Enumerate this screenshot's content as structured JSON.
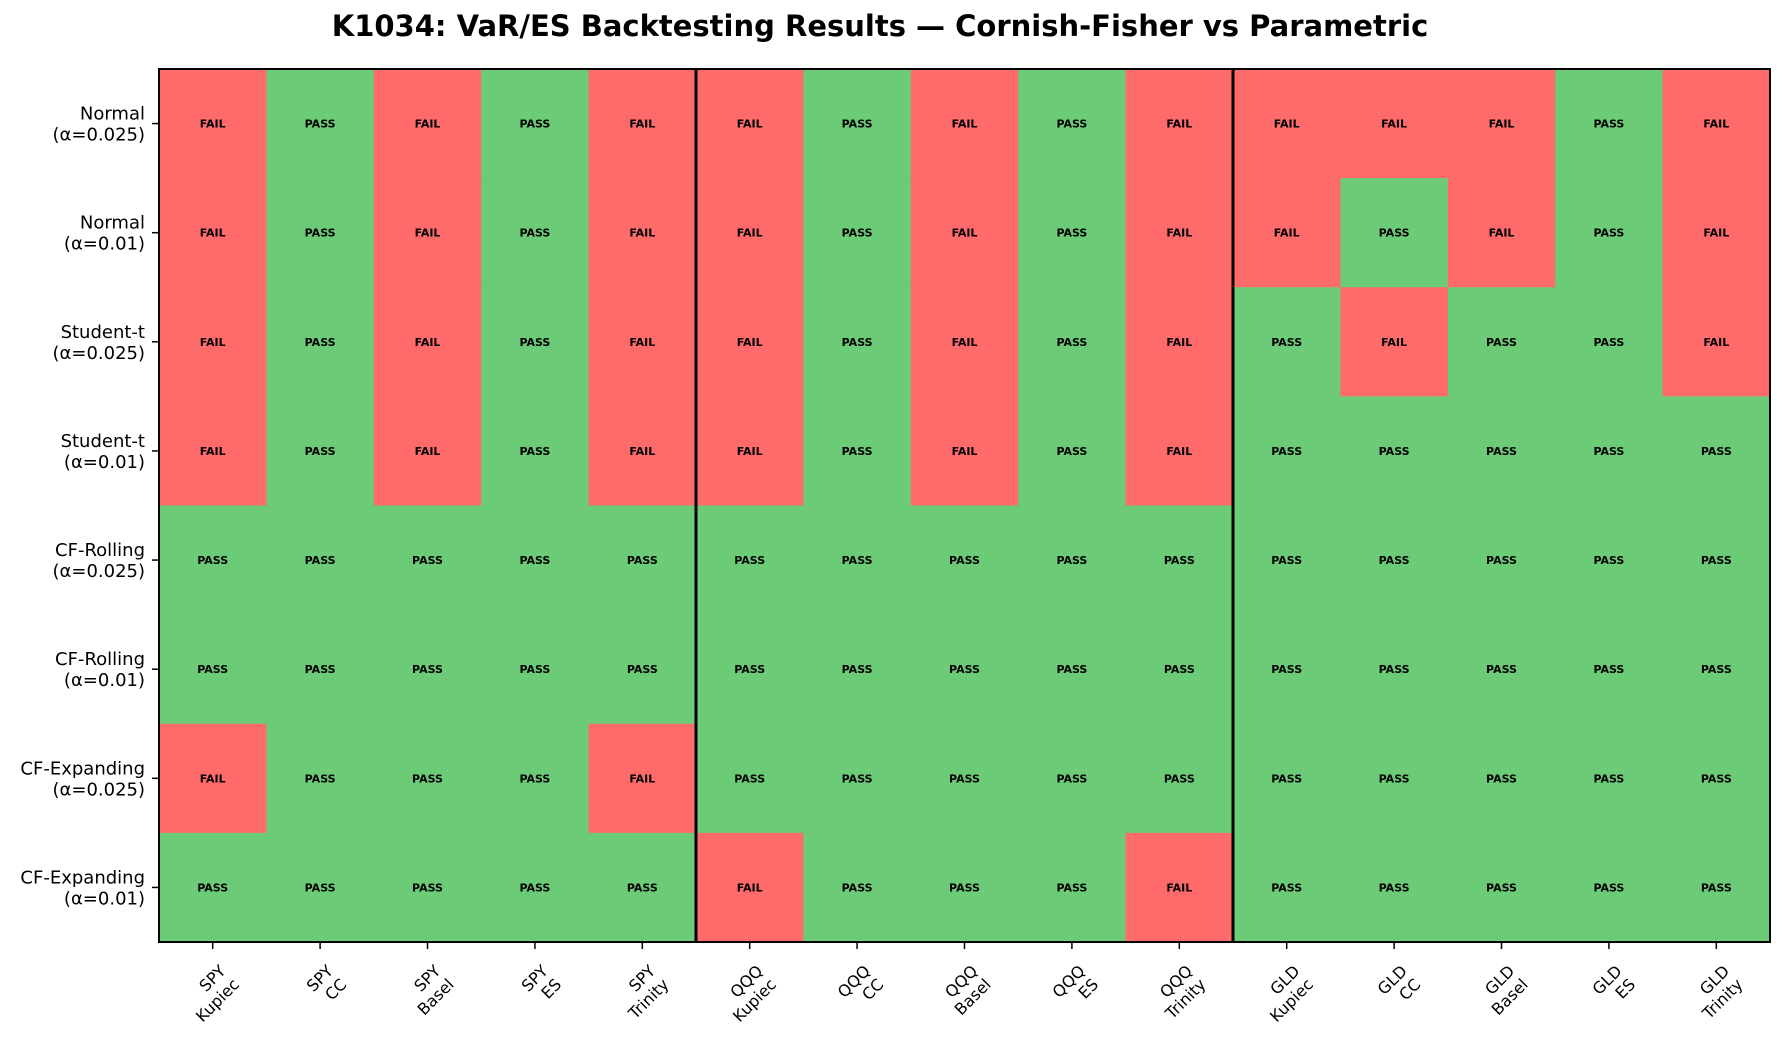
{
  "chart_data": {
    "type": "heatmap",
    "title": "K1034: VaR/ES Backtesting Results — Cornish-Fisher vs Parametric",
    "columns": [
      [
        "SPY",
        "Kupiec"
      ],
      [
        "SPY",
        "CC"
      ],
      [
        "SPY",
        "Basel"
      ],
      [
        "SPY",
        "ES"
      ],
      [
        "SPY",
        "Trinity"
      ],
      [
        "QQQ",
        "Kupiec"
      ],
      [
        "QQQ",
        "CC"
      ],
      [
        "QQQ",
        "Basel"
      ],
      [
        "QQQ",
        "ES"
      ],
      [
        "QQQ",
        "Trinity"
      ],
      [
        "GLD",
        "Kupiec"
      ],
      [
        "GLD",
        "CC"
      ],
      [
        "GLD",
        "Basel"
      ],
      [
        "GLD",
        "ES"
      ],
      [
        "GLD",
        "Trinity"
      ]
    ],
    "rows": [
      [
        "Normal",
        "(α=0.025)"
      ],
      [
        "Normal",
        "(α=0.01)"
      ],
      [
        "Student-t",
        "(α=0.025)"
      ],
      [
        "Student-t",
        "(α=0.01)"
      ],
      [
        "CF-Rolling",
        "(α=0.025)"
      ],
      [
        "CF-Rolling",
        "(α=0.01)"
      ],
      [
        "CF-Expanding",
        "(α=0.025)"
      ],
      [
        "CF-Expanding",
        "(α=0.01)"
      ]
    ],
    "values": [
      [
        "FAIL",
        "PASS",
        "FAIL",
        "PASS",
        "FAIL",
        "FAIL",
        "PASS",
        "FAIL",
        "PASS",
        "FAIL",
        "FAIL",
        "FAIL",
        "FAIL",
        "PASS",
        "FAIL"
      ],
      [
        "FAIL",
        "PASS",
        "FAIL",
        "PASS",
        "FAIL",
        "FAIL",
        "PASS",
        "FAIL",
        "PASS",
        "FAIL",
        "FAIL",
        "PASS",
        "FAIL",
        "PASS",
        "FAIL"
      ],
      [
        "FAIL",
        "PASS",
        "FAIL",
        "PASS",
        "FAIL",
        "FAIL",
        "PASS",
        "FAIL",
        "PASS",
        "FAIL",
        "PASS",
        "FAIL",
        "PASS",
        "PASS",
        "FAIL"
      ],
      [
        "FAIL",
        "PASS",
        "FAIL",
        "PASS",
        "FAIL",
        "FAIL",
        "PASS",
        "FAIL",
        "PASS",
        "FAIL",
        "PASS",
        "PASS",
        "PASS",
        "PASS",
        "PASS"
      ],
      [
        "PASS",
        "PASS",
        "PASS",
        "PASS",
        "PASS",
        "PASS",
        "PASS",
        "PASS",
        "PASS",
        "PASS",
        "PASS",
        "PASS",
        "PASS",
        "PASS",
        "PASS"
      ],
      [
        "PASS",
        "PASS",
        "PASS",
        "PASS",
        "PASS",
        "PASS",
        "PASS",
        "PASS",
        "PASS",
        "PASS",
        "PASS",
        "PASS",
        "PASS",
        "PASS",
        "PASS"
      ],
      [
        "FAIL",
        "PASS",
        "PASS",
        "PASS",
        "FAIL",
        "PASS",
        "PASS",
        "PASS",
        "PASS",
        "PASS",
        "PASS",
        "PASS",
        "PASS",
        "PASS",
        "PASS"
      ],
      [
        "PASS",
        "PASS",
        "PASS",
        "PASS",
        "PASS",
        "FAIL",
        "PASS",
        "PASS",
        "PASS",
        "FAIL",
        "PASS",
        "PASS",
        "PASS",
        "PASS",
        "PASS"
      ]
    ],
    "colors": {
      "PASS": "#6bcb77",
      "FAIL": "#ff6b6b"
    },
    "group_separators_after_column": [
      5,
      10
    ],
    "grid": false,
    "legend": "none"
  }
}
